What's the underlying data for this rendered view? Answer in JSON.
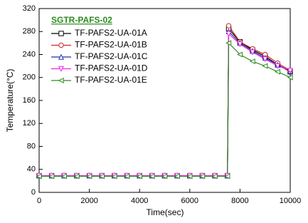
{
  "chart_data": {
    "type": "line",
    "title": "SGTR-PAFS-02",
    "x_label": "Time(sec)",
    "y_label": "Temperature(°C)",
    "x": [
      0,
      500,
      1000,
      1500,
      2000,
      2500,
      3000,
      3500,
      4000,
      4500,
      5000,
      5500,
      6000,
      6500,
      7000,
      7500,
      7550,
      8000,
      8500,
      9000,
      9500,
      10000
    ],
    "series": [
      {
        "name": "TF-PAFS2-UA-01A",
        "color": "#000000",
        "marker": "square",
        "values": [
          29,
          29,
          29,
          29,
          29,
          29,
          29,
          29,
          29,
          29,
          29,
          29,
          29,
          29,
          29,
          29,
          285,
          262,
          248,
          237,
          222,
          210
        ]
      },
      {
        "name": "TF-PAFS2-UA-01B",
        "color": "#cc2a2a",
        "marker": "circle",
        "values": [
          29,
          29,
          29,
          29,
          29,
          29,
          29,
          29,
          29,
          29,
          29,
          29,
          29,
          29,
          29,
          29,
          290,
          262,
          250,
          240,
          225,
          212
        ]
      },
      {
        "name": "TF-PAFS2-UA-01C",
        "color": "#2233aa",
        "marker": "triangle-up",
        "values": [
          29,
          29,
          29,
          29,
          29,
          29,
          29,
          29,
          29,
          29,
          29,
          29,
          29,
          29,
          29,
          29,
          280,
          260,
          246,
          234,
          222,
          211
        ]
      },
      {
        "name": "TF-PAFS2-UA-01D",
        "color": "#ee22ee",
        "marker": "triangle-down",
        "values": [
          29,
          29,
          29,
          29,
          29,
          29,
          29,
          29,
          29,
          29,
          29,
          29,
          29,
          29,
          29,
          29,
          276,
          258,
          244,
          232,
          220,
          212
        ]
      },
      {
        "name": "TF-PAFS2-UA-01E",
        "color": "#2e8b22",
        "marker": "triangle-left",
        "values": [
          28,
          28,
          28,
          28,
          28,
          28,
          28,
          28,
          28,
          28,
          28,
          28,
          28,
          28,
          28,
          28,
          260,
          240,
          228,
          220,
          210,
          200
        ]
      }
    ],
    "xlim": [
      0,
      10000
    ],
    "xticks": [
      0,
      2000,
      4000,
      6000,
      8000,
      10000
    ],
    "ylim": [
      0,
      320
    ],
    "yticks": [
      0,
      40,
      80,
      120,
      160,
      200,
      240,
      280,
      320
    ],
    "grid": false,
    "legend": "upper left"
  }
}
